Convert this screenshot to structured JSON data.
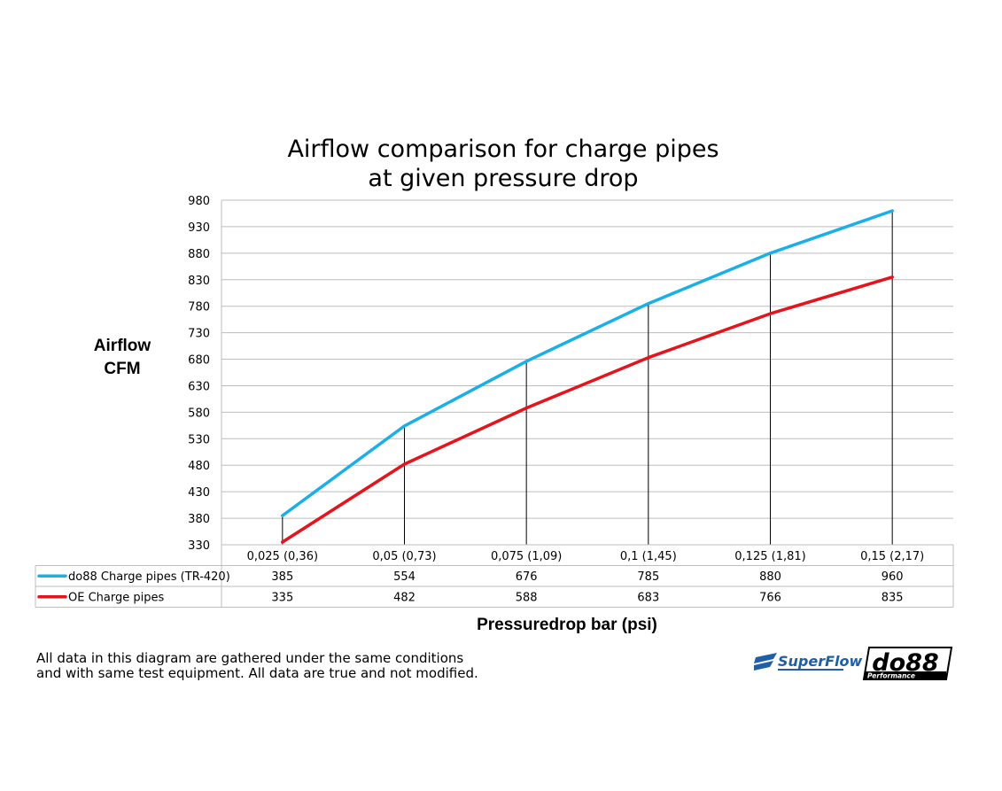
{
  "chart_data": {
    "type": "line",
    "title": [
      "Airflow comparison for charge pipes",
      "at given pressure drop"
    ],
    "ylabel": [
      "Airflow",
      "CFM"
    ],
    "xlabel": "Pressuredrop bar (psi)",
    "ylim": [
      330,
      980
    ],
    "yticks": [
      330,
      380,
      430,
      480,
      530,
      580,
      630,
      680,
      730,
      780,
      830,
      880,
      930,
      980
    ],
    "categories": [
      "0,025 (0,36)",
      "0,05 (0,73)",
      "0,075 (1,09)",
      "0,1 (1,45)",
      "0,125 (1,81)",
      "0,15 (2,17)"
    ],
    "series": [
      {
        "name": "do88 Charge pipes (TR-420)",
        "color": "#1aafe6",
        "values": [
          385,
          554,
          676,
          785,
          880,
          960
        ]
      },
      {
        "name": "OE Charge pipes",
        "color": "#e5141c",
        "values": [
          335,
          482,
          588,
          683,
          766,
          835
        ]
      }
    ],
    "grid": true,
    "legend": "data-table-left"
  },
  "footnote": [
    "All data in this diagram are gathered under the same conditions",
    "and with same test equipment. All data are true and not modified."
  ],
  "logos": {
    "superflow": {
      "name": "SuperFlow",
      "color": "#1f5fa8"
    },
    "do88": {
      "name": "do88",
      "sub": "Performance",
      "color": "#000000"
    }
  }
}
